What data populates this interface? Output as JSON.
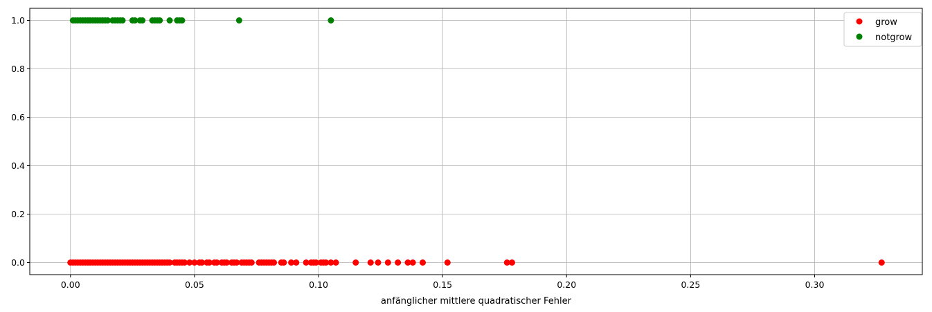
{
  "chart_data": {
    "type": "scatter",
    "title": "",
    "xlabel": "anfänglicher mittlere quadratischer Fehler",
    "ylabel": "",
    "xlim": [
      -0.0164,
      0.3434
    ],
    "ylim": [
      -0.05,
      1.05
    ],
    "x_ticks": [
      0.0,
      0.05,
      0.1,
      0.15,
      0.2,
      0.25,
      0.3
    ],
    "x_tick_labels": [
      "0.00",
      "0.05",
      "0.10",
      "0.15",
      "0.20",
      "0.25",
      "0.30"
    ],
    "y_ticks": [
      0.0,
      0.2,
      0.4,
      0.6,
      0.8,
      1.0
    ],
    "y_tick_labels": [
      "0.0",
      "0.2",
      "0.4",
      "0.6",
      "0.8",
      "1.0"
    ],
    "grid": true,
    "legend": {
      "placement": "top-right",
      "entries": [
        "grow",
        "notgrow"
      ]
    },
    "series": [
      {
        "name": "grow",
        "color": "#ff0000",
        "y": 0,
        "x": [
          0.0,
          0.001,
          0.002,
          0.003,
          0.004,
          0.005,
          0.006,
          0.007,
          0.008,
          0.009,
          0.01,
          0.011,
          0.012,
          0.013,
          0.014,
          0.015,
          0.016,
          0.017,
          0.018,
          0.019,
          0.02,
          0.021,
          0.022,
          0.023,
          0.024,
          0.025,
          0.026,
          0.027,
          0.028,
          0.029,
          0.03,
          0.031,
          0.032,
          0.033,
          0.034,
          0.035,
          0.036,
          0.037,
          0.038,
          0.039,
          0.04,
          0.042,
          0.043,
          0.044,
          0.045,
          0.046,
          0.048,
          0.05,
          0.052,
          0.053,
          0.055,
          0.056,
          0.058,
          0.059,
          0.061,
          0.062,
          0.063,
          0.065,
          0.066,
          0.067,
          0.069,
          0.07,
          0.071,
          0.072,
          0.073,
          0.076,
          0.077,
          0.078,
          0.079,
          0.08,
          0.081,
          0.082,
          0.085,
          0.086,
          0.089,
          0.091,
          0.095,
          0.097,
          0.098,
          0.099,
          0.101,
          0.102,
          0.103,
          0.105,
          0.107,
          0.115,
          0.121,
          0.124,
          0.128,
          0.132,
          0.136,
          0.138,
          0.142,
          0.152,
          0.176,
          0.178,
          0.327
        ]
      },
      {
        "name": "notgrow",
        "color": "#008000",
        "y": 1,
        "x": [
          0.001,
          0.002,
          0.003,
          0.004,
          0.005,
          0.006,
          0.007,
          0.008,
          0.009,
          0.01,
          0.011,
          0.012,
          0.013,
          0.014,
          0.015,
          0.017,
          0.018,
          0.019,
          0.02,
          0.021,
          0.025,
          0.026,
          0.028,
          0.029,
          0.033,
          0.034,
          0.035,
          0.036,
          0.04,
          0.043,
          0.044,
          0.045,
          0.068,
          0.105
        ]
      }
    ]
  }
}
